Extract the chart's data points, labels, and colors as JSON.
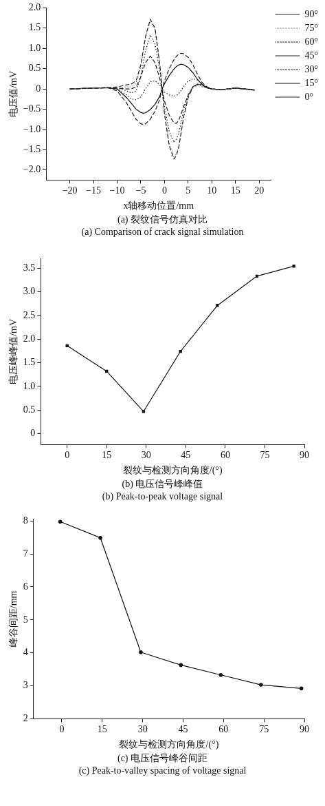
{
  "chart_data": [
    {
      "type": "line",
      "xlabel": "x轴移动位置/mm",
      "ylabel": "电压值/mV",
      "annotations": [
        "(a) 裂纹信号仿真对比",
        "(a) Comparison of crack signal simulation"
      ],
      "xlim": [
        -25,
        22.5
      ],
      "xticks": [
        {
          "value": -20,
          "label": "−20"
        },
        {
          "value": -15,
          "label": "−15"
        },
        {
          "value": -10,
          "label": "−10"
        },
        {
          "value": -5,
          "label": "−5"
        },
        0,
        5,
        10,
        15,
        20
      ],
      "ylim": [
        -2.25,
        2.0
      ],
      "yticks": [
        {
          "value": 2,
          "label": "2.0"
        },
        {
          "value": 1.5,
          "label": "1.5"
        },
        {
          "value": 1,
          "label": "1.0"
        },
        {
          "value": 0.5,
          "label": "0.5"
        },
        0,
        {
          "value": -0.5,
          "label": "−0.5"
        },
        {
          "value": -1,
          "label": "−1.0"
        },
        {
          "value": -1.5,
          "label": "−1.5"
        },
        {
          "value": -2,
          "label": "−2.0"
        }
      ],
      "grid": false,
      "legend": "top right",
      "marker": "none",
      "x": [
        -20,
        -15,
        -12,
        -10,
        -8,
        -7,
        -6,
        -5,
        -4.5,
        -4,
        -3,
        -2,
        -1,
        -0.5,
        0,
        1,
        2,
        2.5,
        3,
        3.5,
        4,
        5,
        6,
        7,
        8,
        9,
        10,
        12,
        15,
        19
      ],
      "series": [
        {
          "name": "90°",
          "color": "#222222",
          "line_style": "dashed",
          "values": [
            0,
            0.02,
            0.03,
            0.05,
            0.1,
            0.12,
            0.2,
            0.6,
            0.95,
            1.3,
            1.72,
            1.5,
            0.62,
            0,
            -0.62,
            -1.4,
            -1.73,
            -1.65,
            -1.45,
            -1.1,
            -0.72,
            -0.22,
            0.05,
            0.12,
            0.1,
            0.03,
            0,
            -0.02,
            0.02,
            -0.03
          ]
        },
        {
          "name": "75°",
          "color": "#888888",
          "line_style": "dotted",
          "values": [
            0,
            0.02,
            0.03,
            0.03,
            0.05,
            0.05,
            0.15,
            0.55,
            0.9,
            1.25,
            1.68,
            1.45,
            0.6,
            0,
            -0.6,
            -1.35,
            -1.68,
            -1.6,
            -1.4,
            -1.05,
            -0.7,
            -0.2,
            0.05,
            0.08,
            0.05,
            0.02,
            0,
            -0.02,
            0.02,
            -0.03
          ]
        },
        {
          "name": "60°",
          "color": "#222222",
          "line_style": "dotted",
          "values": [
            0,
            0.02,
            0.03,
            0.02,
            -0.05,
            -0.1,
            -0.05,
            0.3,
            0.62,
            0.95,
            1.33,
            1.1,
            0.45,
            0,
            -0.45,
            -1.05,
            -1.32,
            -1.25,
            -1.1,
            -0.82,
            -0.55,
            -0.15,
            0.05,
            0.1,
            0.06,
            0.02,
            0,
            -0.02,
            0.02,
            -0.03
          ]
        },
        {
          "name": "45°",
          "color": "#222222",
          "line_style": "dashed",
          "values": [
            0,
            0.02,
            0.03,
            0.02,
            0,
            0,
            0.05,
            0.3,
            0.48,
            0.65,
            0.81,
            0.65,
            0.25,
            0,
            -0.3,
            -0.65,
            -0.84,
            -0.85,
            -0.78,
            -0.62,
            -0.45,
            -0.15,
            0.05,
            0.12,
            0.1,
            0.03,
            0,
            -0.02,
            0.02,
            -0.03
          ]
        },
        {
          "name": "30°",
          "color": "#222222",
          "line_style": "dotted",
          "values": [
            0,
            0.02,
            0.03,
            0,
            -0.15,
            -0.25,
            -0.27,
            -0.2,
            -0.1,
            0,
            0.18,
            0.2,
            0.1,
            0,
            -0.08,
            -0.15,
            -0.18,
            -0.16,
            -0.12,
            -0.04,
            0.05,
            0.2,
            0.25,
            0.22,
            0.12,
            0.03,
            0,
            -0.02,
            0.02,
            -0.03
          ]
        },
        {
          "name": "15°",
          "color": "#111111",
          "line_style": "solid",
          "values": [
            0,
            0.02,
            0.03,
            0,
            -0.22,
            -0.36,
            -0.5,
            -0.58,
            -0.6,
            -0.59,
            -0.51,
            -0.38,
            -0.18,
            0,
            0.13,
            0.33,
            0.49,
            0.55,
            0.59,
            0.61,
            0.6,
            0.53,
            0.4,
            0.23,
            0.1,
            0.03,
            0,
            -0.02,
            0.02,
            -0.02
          ]
        },
        {
          "name": "0°",
          "color": "#222222",
          "line_style": "dashed",
          "values": [
            0,
            0.02,
            0.03,
            -0.05,
            -0.35,
            -0.55,
            -0.75,
            -0.86,
            -0.88,
            -0.86,
            -0.75,
            -0.55,
            -0.25,
            0,
            0.2,
            0.5,
            0.72,
            0.8,
            0.86,
            0.88,
            0.87,
            0.78,
            0.6,
            0.35,
            0.15,
            0.05,
            0,
            -0.02,
            0.02,
            -0.02
          ]
        }
      ]
    },
    {
      "type": "line",
      "xlabel": "裂纹与检测方向角度/(°)",
      "ylabel": "电压峰峰值/mV",
      "annotations": [
        "(b) 电压信号峰峰值",
        "(b) Peak-to-peak voltage signal"
      ],
      "xlim": [
        -10,
        90
      ],
      "xticks": [
        0,
        15,
        30,
        45,
        60,
        75,
        90
      ],
      "ylim": [
        -0.23,
        3.7
      ],
      "yticks": [
        0,
        {
          "value": 0.5,
          "label": "0.5"
        },
        {
          "value": 1,
          "label": "1.0"
        },
        {
          "value": 1.5,
          "label": "1.5"
        },
        {
          "value": 2,
          "label": "2.0"
        },
        {
          "value": 2.5,
          "label": "2.5"
        },
        {
          "value": 3,
          "label": "3.0"
        },
        {
          "value": 3.5,
          "label": "3.5"
        }
      ],
      "grid": false,
      "marker": "square",
      "line_style": "solid",
      "x": [
        0,
        15,
        29,
        43,
        57,
        72,
        86
      ],
      "series": [
        {
          "color": "#111111",
          "values": [
            1.86,
            1.32,
            0.47,
            1.74,
            2.71,
            3.33,
            3.54
          ]
        }
      ]
    },
    {
      "type": "line",
      "xlabel": "裂纹与检测方向角度/(°)",
      "ylabel": "峰谷间距/mm",
      "annotations": [
        "(c) 电压信号峰谷间距",
        "(c) Peak-to-valley spacing of voltage signal"
      ],
      "xlim": [
        -10.5,
        90
      ],
      "xticks": [
        0,
        15,
        30,
        45,
        60,
        75,
        90
      ],
      "ylim": [
        2,
        8.06
      ],
      "yticks": [
        2,
        3,
        4,
        5,
        6,
        7,
        8
      ],
      "grid": false,
      "marker": "circle",
      "line_style": "solid",
      "x": [
        -0.6,
        14.3,
        29.3,
        44.2,
        59,
        73.9,
        88.9
      ],
      "series": [
        {
          "color": "#111111",
          "values": [
            7.98,
            7.49,
            4.02,
            3.63,
            3.33,
            3.03,
            2.92
          ]
        }
      ]
    }
  ]
}
